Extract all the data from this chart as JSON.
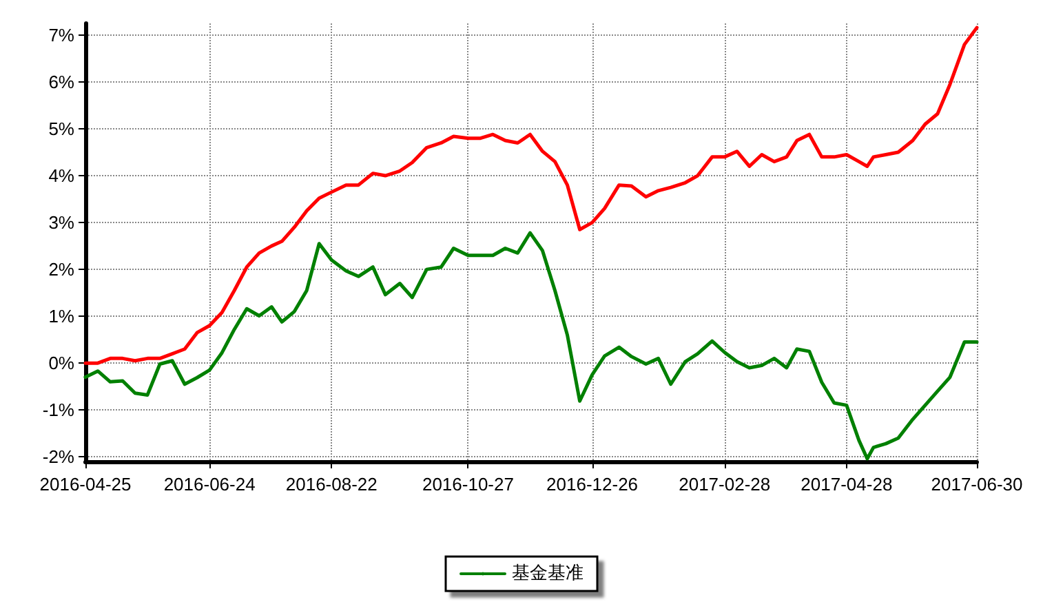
{
  "chart_data": {
    "type": "line",
    "x": [
      "2016-04-25",
      "2016-05-01",
      "2016-05-07",
      "2016-05-13",
      "2016-05-19",
      "2016-05-25",
      "2016-05-31",
      "2016-06-06",
      "2016-06-12",
      "2016-06-18",
      "2016-06-24",
      "2016-06-30",
      "2016-07-06",
      "2016-07-12",
      "2016-07-18",
      "2016-07-24",
      "2016-07-29",
      "2016-08-04",
      "2016-08-10",
      "2016-08-16",
      "2016-08-22",
      "2016-08-29",
      "2016-09-04",
      "2016-09-11",
      "2016-09-17",
      "2016-09-24",
      "2016-09-30",
      "2016-10-07",
      "2016-10-14",
      "2016-10-20",
      "2016-10-27",
      "2016-11-02",
      "2016-11-08",
      "2016-11-14",
      "2016-11-20",
      "2016-11-26",
      "2016-12-02",
      "2016-12-08",
      "2016-12-14",
      "2016-12-20",
      "2016-12-26",
      "2017-01-01",
      "2017-01-08",
      "2017-01-14",
      "2017-01-21",
      "2017-01-27",
      "2017-02-02",
      "2017-02-09",
      "2017-02-15",
      "2017-02-22",
      "2017-02-28",
      "2017-03-06",
      "2017-03-12",
      "2017-03-18",
      "2017-03-24",
      "2017-03-30",
      "2017-04-04",
      "2017-04-10",
      "2017-04-16",
      "2017-04-22",
      "2017-04-28",
      "2017-05-04",
      "2017-05-08",
      "2017-05-11",
      "2017-05-17",
      "2017-05-23",
      "2017-05-30",
      "2017-06-05",
      "2017-06-11",
      "2017-06-17",
      "2017-06-24",
      "2017-06-30"
    ],
    "series": [
      {
        "color": "#ff0000",
        "values": [
          0.0,
          0.0,
          0.1,
          0.1,
          0.05,
          0.1,
          0.1,
          0.2,
          0.3,
          0.65,
          0.8,
          1.08,
          1.55,
          2.05,
          2.35,
          2.5,
          2.6,
          2.9,
          3.25,
          3.52,
          3.65,
          3.8,
          3.8,
          4.05,
          4.0,
          4.1,
          4.28,
          4.6,
          4.7,
          4.84,
          4.8,
          4.8,
          4.88,
          4.75,
          4.7,
          4.88,
          4.52,
          4.3,
          3.8,
          2.85,
          3.0,
          3.3,
          3.8,
          3.78,
          3.55,
          3.68,
          3.75,
          3.85,
          4.0,
          4.4,
          4.4,
          4.52,
          4.2,
          4.45,
          4.3,
          4.4,
          4.75,
          4.88,
          4.4,
          4.4,
          4.45,
          4.3,
          4.2,
          4.4,
          4.45,
          4.5,
          4.75,
          5.1,
          5.32,
          5.95,
          6.8,
          7.16
        ]
      },
      {
        "name": "基金基准",
        "color": "#008000",
        "values": [
          -0.3,
          -0.17,
          -0.4,
          -0.38,
          -0.64,
          -0.68,
          -0.02,
          0.05,
          -0.45,
          -0.31,
          -0.15,
          0.22,
          0.72,
          1.16,
          1.01,
          1.2,
          0.88,
          1.1,
          1.55,
          2.55,
          2.2,
          1.97,
          1.85,
          2.05,
          1.46,
          1.7,
          1.4,
          2.0,
          2.05,
          2.45,
          2.3,
          2.3,
          2.3,
          2.45,
          2.35,
          2.78,
          2.4,
          1.55,
          0.6,
          -0.81,
          -0.25,
          0.15,
          0.34,
          0.14,
          -0.02,
          0.1,
          -0.45,
          0.03,
          0.2,
          0.47,
          0.23,
          0.03,
          -0.1,
          -0.05,
          0.1,
          -0.1,
          0.3,
          0.25,
          -0.41,
          -0.85,
          -0.9,
          -1.65,
          -2.04,
          -1.8,
          -1.72,
          -1.6,
          -1.2,
          -0.9,
          -0.6,
          -0.3,
          0.45,
          0.45
        ]
      }
    ],
    "xlim": [
      "2016-04-25",
      "2017-06-30"
    ],
    "xticks": [
      "2016-04-25",
      "2016-06-24",
      "2016-08-22",
      "2016-10-27",
      "2016-12-26",
      "2017-02-28",
      "2017-04-28",
      "2017-06-30"
    ],
    "ylim": [
      -2.1,
      7.25
    ],
    "yticks": [
      {
        "value": -2,
        "label": "-2%"
      },
      {
        "value": -1,
        "label": "-1%"
      },
      {
        "value": 0,
        "label": "0%"
      },
      {
        "value": 1,
        "label": "1%"
      },
      {
        "value": 2,
        "label": "2%"
      },
      {
        "value": 3,
        "label": "3%"
      },
      {
        "value": 4,
        "label": "4%"
      },
      {
        "value": 5,
        "label": "5%"
      },
      {
        "value": 6,
        "label": "6%"
      },
      {
        "value": 7,
        "label": "7%"
      }
    ],
    "grid": true,
    "legend": "bottom",
    "marker": "none",
    "line_style": "solid"
  }
}
